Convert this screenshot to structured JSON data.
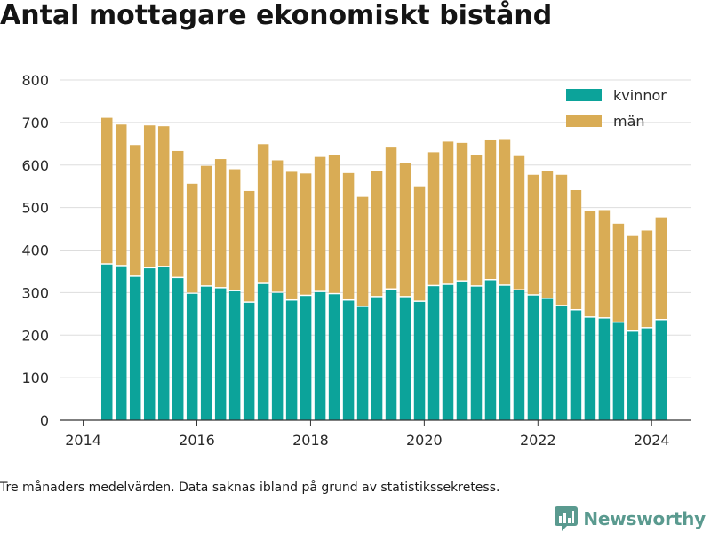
{
  "title": "Antal mottagare ekonomiskt bistånd",
  "note": "Tre månaders medelvärden. Data saknas ibland på grund av statistikssekretess.",
  "brand": {
    "name": "Newsworthy",
    "color": "#5a9a8f",
    "icon": "bar-chart-logo-icon"
  },
  "colors": {
    "kvinnor": "#0ca39a",
    "man": "#d9ac55",
    "grid": "#dddddd",
    "axis": "#333333"
  },
  "chart_data": {
    "type": "bar",
    "stacked": true,
    "title": "Antal mottagare ekonomiskt bistånd",
    "xlabel": "",
    "ylabel": "",
    "ylim": [
      0,
      800
    ],
    "xlim": [
      2013.6,
      2024.7
    ],
    "y_ticks": [
      0,
      100,
      200,
      300,
      400,
      500,
      600,
      700,
      800
    ],
    "x_ticks": [
      2014,
      2016,
      2018,
      2020,
      2022,
      2024
    ],
    "x_tick_labels": [
      "2014",
      "2016",
      "2018",
      "2020",
      "2022",
      "2024"
    ],
    "grid": true,
    "legend_position": "top-right",
    "x": [
      "2014-06",
      "2014-09",
      "2014-12",
      "2015-03",
      "2015-06",
      "2015-09",
      "2015-12",
      "2016-03",
      "2016-06",
      "2016-09",
      "2016-12",
      "2017-03",
      "2017-06",
      "2017-09",
      "2017-12",
      "2018-03",
      "2018-06",
      "2018-09",
      "2018-12",
      "2019-03",
      "2019-06",
      "2019-09",
      "2019-12",
      "2020-03",
      "2020-06",
      "2020-09",
      "2020-12",
      "2021-03",
      "2021-06",
      "2021-09",
      "2021-12",
      "2022-03",
      "2022-06",
      "2022-09",
      "2022-12",
      "2023-03",
      "2023-06",
      "2023-09",
      "2023-12",
      "2024-03"
    ],
    "series": [
      {
        "name": "kvinnor",
        "color": "#0ca39a",
        "values": [
          366,
          362,
          337,
          357,
          360,
          334,
          297,
          314,
          310,
          303,
          276,
          320,
          299,
          281,
          292,
          301,
          296,
          281,
          266,
          289,
          307,
          289,
          278,
          315,
          318,
          326,
          314,
          329,
          316,
          305,
          293,
          285,
          268,
          258,
          241,
          239,
          229,
          208,
          216,
          235
        ]
      },
      {
        "name": "män",
        "color": "#d9ac55",
        "values": [
          345,
          333,
          310,
          336,
          331,
          299,
          259,
          284,
          304,
          287,
          263,
          329,
          312,
          303,
          288,
          318,
          327,
          300,
          259,
          297,
          334,
          316,
          272,
          315,
          337,
          326,
          309,
          329,
          343,
          316,
          284,
          300,
          309,
          283,
          251,
          255,
          233,
          225,
          230,
          242
        ]
      }
    ]
  }
}
